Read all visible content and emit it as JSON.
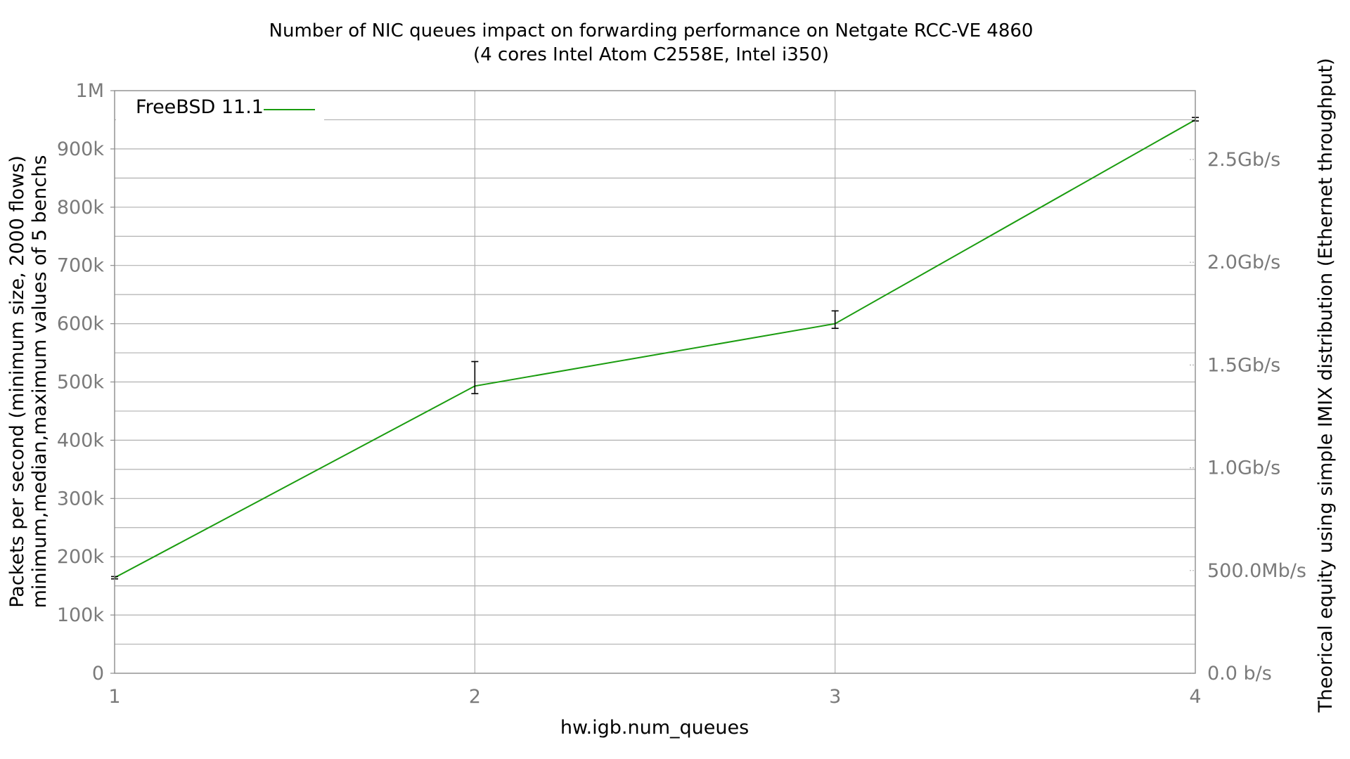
{
  "chart_data": {
    "type": "line",
    "title": "Number of NIC queues impact on forwarding performance on Netgate RCC-VE 4860",
    "subtitle": "(4 cores Intel Atom C2558E, Intel i350)",
    "xlabel": "hw.igb.num_queues",
    "ylabel_line1": "Packets per second (minimum size, 2000 flows)",
    "ylabel_line2": "minimum,median,maximum values of 5 benchs",
    "y2label": "Theorical equity using simple IMIX distribution (Ethernet throughput)",
    "x": [
      1,
      2,
      3,
      4
    ],
    "xlim": [
      1,
      4
    ],
    "ylim": [
      0,
      1000000
    ],
    "x_tick_labels": [
      "1",
      "2",
      "3",
      "4"
    ],
    "y_ticks": [
      0,
      100000,
      200000,
      300000,
      400000,
      500000,
      600000,
      700000,
      800000,
      900000,
      1000000
    ],
    "y_tick_labels": [
      "0",
      "100k",
      "200k",
      "300k",
      "400k",
      "500k",
      "600k",
      "700k",
      "800k",
      "900k",
      "1M"
    ],
    "y_minor_step": 50000,
    "y2_ticks_bps": [
      0,
      500000000,
      1000000000,
      1500000000,
      2000000000,
      2500000000
    ],
    "y2_tick_labels": [
      "0.0 b/s",
      "500.0Mb/s",
      "1.0Gb/s",
      "1.5Gb/s",
      "2.0Gb/s",
      "2.5Gb/s"
    ],
    "y2_bps_per_pps": 2835.2,
    "grid": true,
    "legend_position": "top-left",
    "series": [
      {
        "name": "FreeBSD 11.1",
        "color": "#1a9c0f",
        "median": [
          164000,
          493000,
          600000,
          950000
        ],
        "min": [
          162000,
          480000,
          592000,
          948000
        ],
        "max": [
          166000,
          535000,
          622000,
          954000
        ]
      }
    ]
  }
}
